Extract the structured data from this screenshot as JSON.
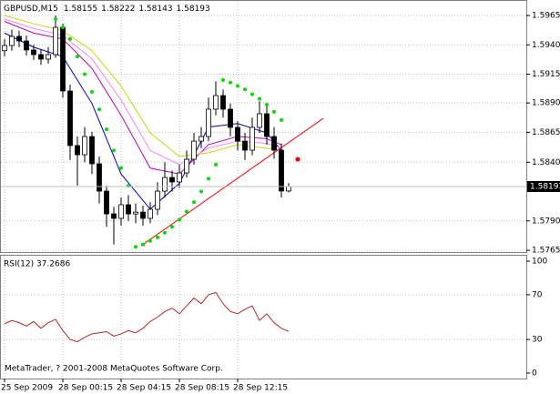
{
  "chart_data": [
    {
      "type": "candlestick",
      "symbol": "GBPUSD,M15",
      "open": [
        1.5935,
        1.59394,
        1.59472,
        1.59433,
        1.59356,
        1.59317,
        1.59278,
        1.59317,
        1.59549,
        1.59007,
        1.58542,
        1.58464,
        1.58619,
        1.58387,
        1.58154,
        1.5796,
        1.57922,
        1.58038,
        1.5796,
        1.57975,
        1.57922,
        1.57999,
        1.58154,
        1.5827,
        1.58232,
        1.58309,
        1.58425,
        1.5858,
        1.58619,
        1.58852,
        1.58968,
        1.58852,
        1.58697,
        1.5858,
        1.58503,
        1.58697,
        1.58813,
        1.58619,
        1.58503,
        1.58155
      ],
      "high": [
        1.5945,
        1.5953,
        1.5952,
        1.5948,
        1.594,
        1.5936,
        1.5938,
        1.5965,
        1.5958,
        1.5906,
        1.5862,
        1.587,
        1.5866,
        1.5845,
        1.582,
        1.5802,
        1.581,
        1.5812,
        1.5805,
        1.5803,
        1.5806,
        1.5823,
        1.584,
        1.5833,
        1.5838,
        1.585,
        1.5865,
        1.587,
        1.5895,
        1.5909,
        1.5902,
        1.589,
        1.5875,
        1.5865,
        1.5878,
        1.5892,
        1.5888,
        1.587,
        1.5856,
        1.58222
      ],
      "low": [
        1.593,
        1.5935,
        1.5938,
        1.5931,
        1.5927,
        1.5923,
        1.5924,
        1.5929,
        1.5895,
        1.5842,
        1.582,
        1.584,
        1.583,
        1.5805,
        1.5785,
        1.577,
        1.5786,
        1.579,
        1.5788,
        1.5786,
        1.5788,
        1.5795,
        1.581,
        1.5815,
        1.5818,
        1.5827,
        1.5838,
        1.5852,
        1.5858,
        1.588,
        1.5878,
        1.5862,
        1.585,
        1.5842,
        1.5846,
        1.5865,
        1.5855,
        1.5843,
        1.581,
        1.58143
      ],
      "close": [
        1.59394,
        1.59472,
        1.59433,
        1.59356,
        1.59317,
        1.59278,
        1.59317,
        1.59549,
        1.59007,
        1.58542,
        1.58464,
        1.58619,
        1.58387,
        1.58154,
        1.5796,
        1.57922,
        1.58038,
        1.5796,
        1.57975,
        1.57922,
        1.57999,
        1.58154,
        1.5827,
        1.58232,
        1.58309,
        1.58425,
        1.5858,
        1.58619,
        1.58852,
        1.58968,
        1.58852,
        1.58697,
        1.5858,
        1.58503,
        1.58697,
        1.58813,
        1.58619,
        1.58503,
        1.58155,
        1.58193
      ],
      "up_color": "#ffffff",
      "down_color": "#000000",
      "wick_color": "#000000",
      "ylim": [
        1.57635,
        1.59782
      ],
      "yticks": [
        {
          "value": 1.5965,
          "label": "1.59650"
        },
        {
          "value": 1.594,
          "label": "1.59400"
        },
        {
          "value": 1.5915,
          "label": "1.59150"
        },
        1.58905,
        1.58655,
        {
          "value": 1.584,
          "label": "1.58400"
        },
        {
          "value": 1.579,
          "label": "1.57900"
        },
        {
          "value": 1.5765,
          "label": "1.57650"
        }
      ],
      "xticks": [
        {
          "value": 0,
          "label": "25 Sep 2009"
        },
        {
          "value": 8,
          "label": "28 Sep 00:15"
        },
        {
          "value": 16,
          "label": "28 Sep 04:15"
        },
        {
          "value": 24,
          "label": "28 Sep 08:15"
        },
        {
          "value": 32,
          "label": "28 Sep 12:15"
        }
      ],
      "grid": true,
      "moving_averages": [
        {
          "color": "#0000c8",
          "x": [
            0,
            4,
            8,
            12,
            16,
            20,
            24,
            28,
            32,
            36,
            38
          ],
          "values": [
            1.595,
            1.5938,
            1.593,
            1.589,
            1.583,
            1.58,
            1.5822,
            1.587,
            1.5873,
            1.5865,
            1.585
          ]
        },
        {
          "color": "#c000c0",
          "x": [
            0,
            4,
            8,
            12,
            16,
            20,
            24,
            28,
            32,
            36,
            38
          ],
          "values": [
            1.596,
            1.595,
            1.5945,
            1.592,
            1.588,
            1.5835,
            1.583,
            1.5855,
            1.5862,
            1.586,
            1.5855
          ]
        },
        {
          "color": "#ff80ff",
          "x": [
            0,
            4,
            8,
            12,
            16,
            20,
            24,
            28,
            32,
            36,
            38
          ],
          "values": [
            1.5962,
            1.5954,
            1.5948,
            1.5928,
            1.5893,
            1.585,
            1.5838,
            1.5852,
            1.5858,
            1.5856,
            1.5852
          ]
        },
        {
          "color": "#c8d800",
          "x": [
            0,
            4,
            8,
            12,
            16,
            20,
            24,
            28,
            32,
            36,
            38
          ],
          "values": [
            1.5965,
            1.5958,
            1.5952,
            1.5935,
            1.5905,
            1.5865,
            1.5845,
            1.5848,
            1.5855,
            1.5852,
            1.585
          ]
        }
      ],
      "sar": {
        "color": "#00e000",
        "x": [
          7,
          8,
          9,
          10,
          11,
          12,
          13,
          14,
          15,
          16,
          17,
          18,
          19,
          20,
          21,
          22,
          23,
          24,
          25,
          26,
          27,
          28,
          29,
          30,
          31,
          32,
          33,
          34,
          35,
          36,
          37,
          38
        ],
        "values": [
          1.5962,
          1.5955,
          1.5945,
          1.593,
          1.5915,
          1.59,
          1.5885,
          1.5868,
          1.585,
          1.5835,
          1.582,
          1.5768,
          1.577,
          1.5773,
          1.5776,
          1.578,
          1.5785,
          1.5791,
          1.5798,
          1.5806,
          1.5815,
          1.5826,
          1.5838,
          1.591,
          1.5908,
          1.5905,
          1.5902,
          1.5898,
          1.5894,
          1.5889,
          1.5883,
          1.5876
        ]
      },
      "trendline": {
        "color": "#ff0000",
        "x": [
          18.75,
          43.75
        ],
        "values": [
          1.57689,
          1.58774
        ]
      },
      "marker": {
        "color": "#ff0000",
        "x": 40.25,
        "value": 1.58425
      }
    },
    {
      "type": "line",
      "title": "RSI(12) 37.2686",
      "color": "#c02020",
      "values": [
        44,
        47,
        45,
        42,
        46,
        40,
        45,
        48,
        38,
        30,
        28,
        32,
        35,
        36,
        37,
        33,
        35,
        38,
        36,
        40,
        46,
        50,
        55,
        58,
        53,
        60,
        67,
        62,
        70,
        72,
        62,
        55,
        53,
        57,
        60,
        47,
        53,
        45,
        40,
        37.2686
      ],
      "ylim": [
        -4.9,
        104.9
      ],
      "yticks": [
        0,
        30,
        70,
        100
      ],
      "levels": [
        30,
        70
      ]
    }
  ],
  "footer": "MetaTrader, ? 2001-2008 MetaQuotes Software Corp."
}
